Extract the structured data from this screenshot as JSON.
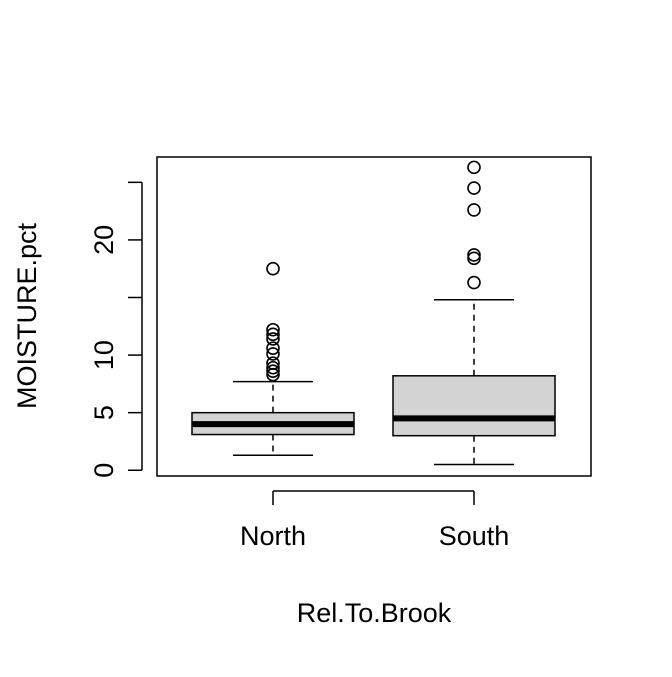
{
  "chart_data": {
    "type": "boxplot",
    "xlabel": "Rel.To.Brook",
    "ylabel": "MOISTURE.pct",
    "ylim": [
      -0.5,
      27.2
    ],
    "yticks": [
      0,
      5,
      10,
      15,
      20,
      25
    ],
    "ytick_labels": [
      "0",
      "5",
      "10",
      "",
      "20",
      ""
    ],
    "categories": [
      "North",
      "South"
    ],
    "box_fill": "#d3d3d3",
    "groups": [
      {
        "name": "North",
        "whisker_low": 1.3,
        "q1": 3.1,
        "median": 4.0,
        "q3": 5.0,
        "whisker_high": 7.7,
        "outliers": [
          8.3,
          8.6,
          8.9,
          9.3,
          10.1,
          10.6,
          11.4,
          11.8,
          12.2,
          17.5
        ]
      },
      {
        "name": "South",
        "whisker_low": 0.5,
        "q1": 3.0,
        "median": 4.5,
        "q3": 8.2,
        "whisker_high": 14.8,
        "outliers": [
          16.3,
          18.4,
          18.7,
          22.6,
          24.5,
          26.3
        ]
      }
    ]
  }
}
